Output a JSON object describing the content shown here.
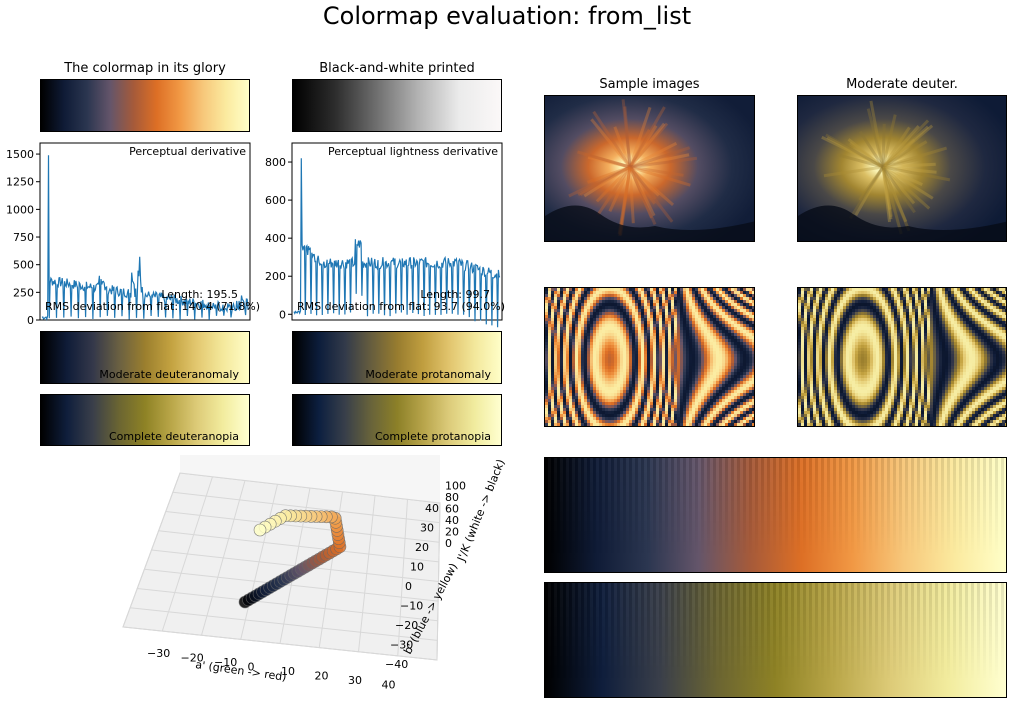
{
  "page": {
    "title": "Colormap evaluation: from_list"
  },
  "colormap": {
    "glory": [
      "#000000",
      "#0f1b36",
      "#2b3650",
      "#64556a",
      "#a55a3a",
      "#dd6f25",
      "#f19844",
      "#f7c77a",
      "#fbea9f",
      "#ffffc8"
    ],
    "bw": [
      "#000000",
      "#2c2c2c",
      "#6e6e6e",
      "#b2b2b2",
      "#ebebeb",
      "#fbf8f8"
    ],
    "deuteranomaly": [
      "#000000",
      "#0f1c38",
      "#34384a",
      "#6a6042",
      "#9b7f2e",
      "#c3a240",
      "#e3c870",
      "#f4e99c",
      "#fffdc8"
    ],
    "protanomaly": [
      "#000000",
      "#0c1d3b",
      "#323a4a",
      "#665d3e",
      "#977c2f",
      "#c09e3f",
      "#e1c46d",
      "#f3e89c",
      "#fffec8"
    ],
    "deuteranopia": [
      "#000000",
      "#0f1e3c",
      "#3a3f4a",
      "#6b6532",
      "#8e8225",
      "#b9a648",
      "#ddcb78",
      "#f2ec9e",
      "#ffffd0"
    ],
    "protanopia": [
      "#000000",
      "#0c1f40",
      "#383f4a",
      "#68633a",
      "#8c8028",
      "#b7a44a",
      "#dccb7a",
      "#f1ec9f",
      "#ffffd0"
    ]
  },
  "panels": {
    "glory_title": "The colormap in its glory",
    "bw_title": "Black-and-white printed",
    "sample_title": "Sample images",
    "deuter_title": "Moderate deuter.",
    "deuteranomaly_label": "Moderate deuteranomaly",
    "protanomaly_label": "Moderate protanomaly",
    "deuteranopia_label": "Complete deuteranopia",
    "protanopia_label": "Complete protanopia"
  },
  "chart_data": [
    {
      "type": "line",
      "title": "Perceptual derivative",
      "ylim": [
        0,
        1600
      ],
      "yticks": [
        "0",
        "250",
        "500",
        "750",
        "1000",
        "1250",
        "1500"
      ],
      "annotations": [
        "Length: 195.5",
        "RMS deviation from flat: 140.4 (71.8%)"
      ],
      "color": "#1f77b4"
    },
    {
      "type": "line",
      "title": "Perceptual lightness derivative",
      "ylim": [
        -30,
        900
      ],
      "yticks": [
        "0",
        "200",
        "400",
        "600",
        "800"
      ],
      "annotations": [
        "Length: 99.7",
        "RMS deviation from flat: 93.7 (94.0%)"
      ],
      "color": "#1f77b4"
    },
    {
      "type": "scatter",
      "xlabel": "a' (green -> red)",
      "ylabel": "b' (blue -> yellow)",
      "zlabel": "J'/K (white -> black)",
      "xticks": [
        "−30",
        "−20",
        "−10",
        "0",
        "10",
        "20",
        "30",
        "40"
      ],
      "yticks": [
        "−40",
        "−30",
        "−20",
        "−10",
        "0",
        "10",
        "20",
        "30",
        "40"
      ],
      "zticks": [
        "0",
        "20",
        "40",
        "60",
        "80",
        "100"
      ]
    }
  ]
}
